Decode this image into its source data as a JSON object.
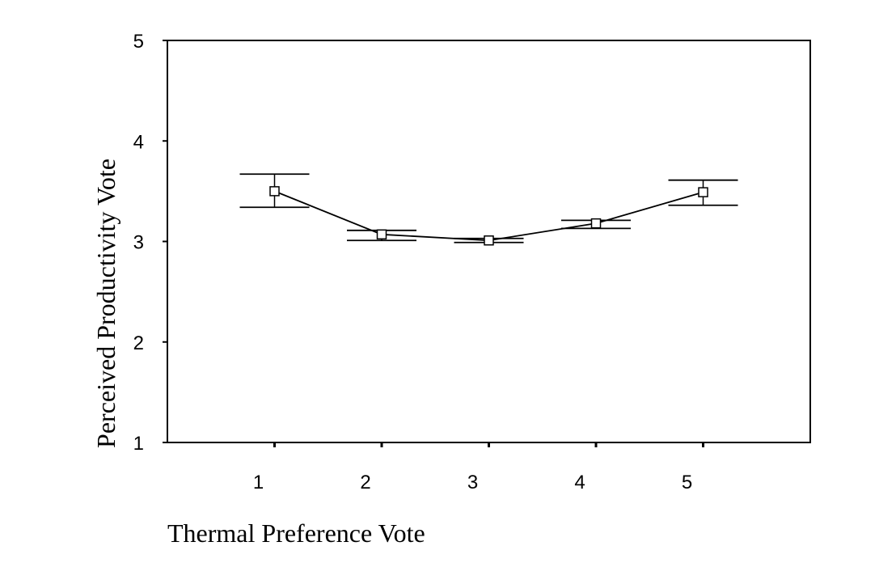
{
  "chart_data": {
    "type": "line",
    "xlabel": "Thermal Preference Vote",
    "ylabel": "Perceived Productivity Vote",
    "x": [
      1,
      2,
      3,
      4,
      5
    ],
    "x_tick_labels": [
      "1",
      "2",
      "3",
      "4",
      "5"
    ],
    "xlim": [
      0,
      6
    ],
    "ylim": [
      1,
      5
    ],
    "y_ticks": [
      1,
      2,
      3,
      4,
      5
    ],
    "y_tick_labels": [
      "1",
      "2",
      "3",
      "4",
      "5"
    ],
    "grid": false,
    "series": [
      {
        "values": [
          3.5,
          3.07,
          3.01,
          3.18,
          3.49
        ],
        "error_low": [
          3.34,
          3.01,
          2.99,
          3.13,
          3.36
        ],
        "error_high": [
          3.67,
          3.11,
          3.03,
          3.21,
          3.61
        ],
        "marker": "square",
        "color": "#000000"
      }
    ]
  }
}
